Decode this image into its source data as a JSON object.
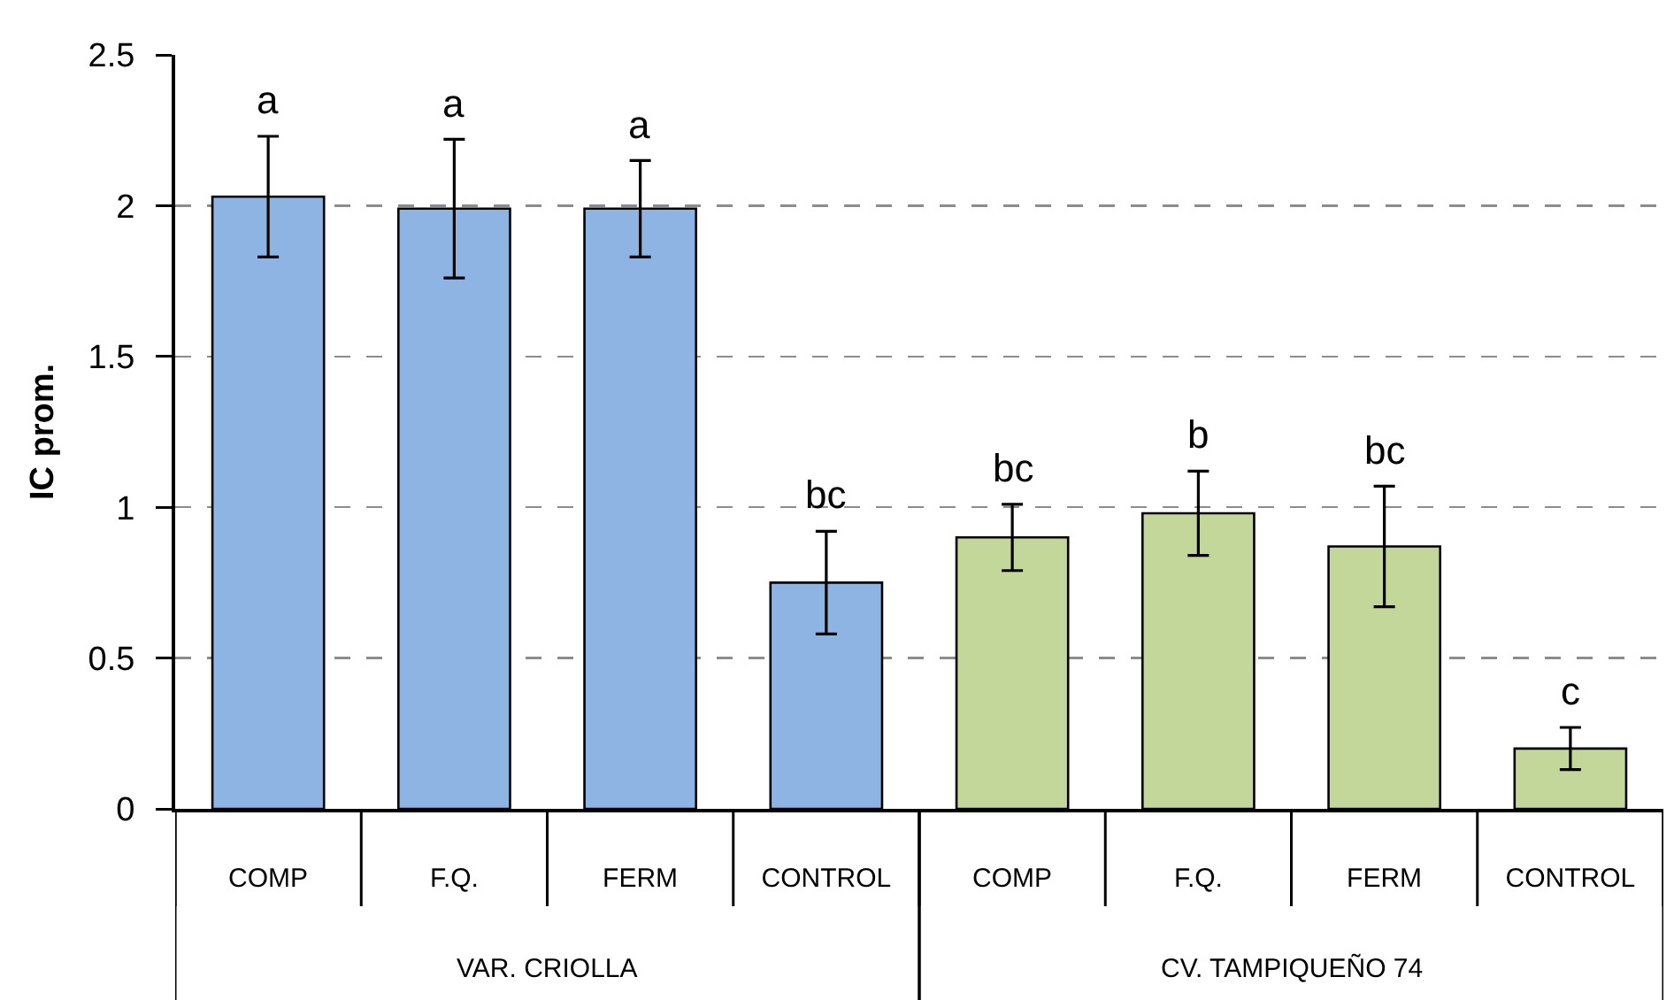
{
  "chart_data": {
    "type": "bar",
    "ylabel": "IC prom.",
    "categories": [
      "COMP",
      "F.Q.",
      "FERM",
      "CONTROL",
      "COMP",
      "F.Q.",
      "FERM",
      "CONTROL"
    ],
    "values": [
      2.03,
      1.99,
      1.99,
      0.75,
      0.9,
      0.98,
      0.87,
      0.2
    ],
    "colors": [
      "#8eb4e3",
      "#8eb4e3",
      "#8eb4e3",
      "#8eb4e3",
      "#c4d79b",
      "#c4d79b",
      "#c4d79b",
      "#c4d79b"
    ],
    "errors": [
      0.2,
      0.23,
      0.16,
      0.17,
      0.11,
      0.14,
      0.2,
      0.07
    ],
    "value_labels": [
      "a",
      "a",
      "a",
      "bc",
      "bc",
      "b",
      "bc",
      "c"
    ],
    "annotations": [
      "VAR. CRIOLLA",
      "CV. TAMPIQUEÑO 74"
    ],
    "ylim": [
      0,
      2.5
    ],
    "yticks": [
      0,
      0.5,
      1,
      1.5,
      2,
      2.5
    ],
    "grid": "y"
  }
}
